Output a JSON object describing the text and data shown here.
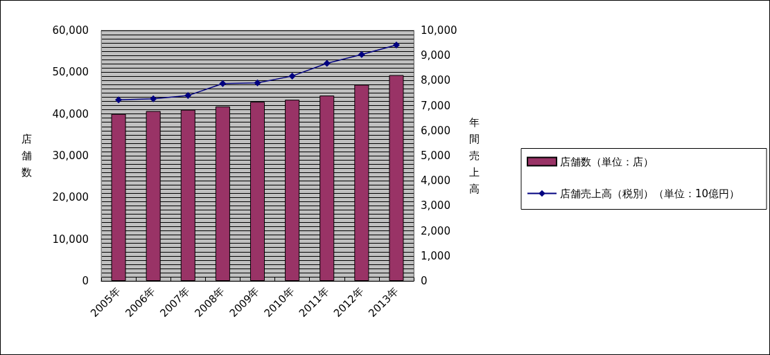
{
  "chart_data": {
    "type": "bar",
    "ylabel": "店舗数",
    "y2label": "年間売上高",
    "categories": [
      "2005年",
      "2006年",
      "2007年",
      "2008年",
      "2009年",
      "2010年",
      "2011年",
      "2012年",
      "2013年"
    ],
    "series": [
      {
        "name": "店舗数（単位：店）",
        "color": "#993366",
        "values": [
          40000,
          40700,
          41000,
          41800,
          42900,
          43400,
          44400,
          47000,
          49300
        ]
      },
      {
        "name": "店舗売上高（税別）（単位：10億円）",
        "type": "line",
        "axis": "y2",
        "color": "#000080",
        "marker": "diamond",
        "values": [
          7230,
          7270,
          7400,
          7880,
          7910,
          8180,
          8690,
          9040,
          9420
        ]
      }
    ],
    "ylim": [
      0,
      60000
    ],
    "yticks": [
      0,
      {
        "value": 10000,
        "label": "10,000"
      },
      {
        "value": 20000,
        "label": "20,000"
      },
      {
        "value": 30000,
        "label": "30,000"
      },
      {
        "value": 40000,
        "label": "40,000"
      },
      {
        "value": 50000,
        "label": "50,000"
      },
      {
        "value": 60000,
        "label": "60,000"
      }
    ],
    "y2lim": [
      0,
      10000
    ],
    "y2ticks": [
      0,
      {
        "value": 1000,
        "label": "1,000"
      },
      {
        "value": 2000,
        "label": "2,000"
      },
      {
        "value": 3000,
        "label": "3,000"
      },
      {
        "value": 4000,
        "label": "4,000"
      },
      {
        "value": 5000,
        "label": "5,000"
      },
      {
        "value": 6000,
        "label": "6,000"
      },
      {
        "value": 7000,
        "label": "7,000"
      },
      {
        "value": 8000,
        "label": "8,000"
      },
      {
        "value": 9000,
        "label": "9,000"
      },
      {
        "value": 10000,
        "label": "10,000"
      }
    ],
    "grid": "y",
    "legend": "right"
  }
}
